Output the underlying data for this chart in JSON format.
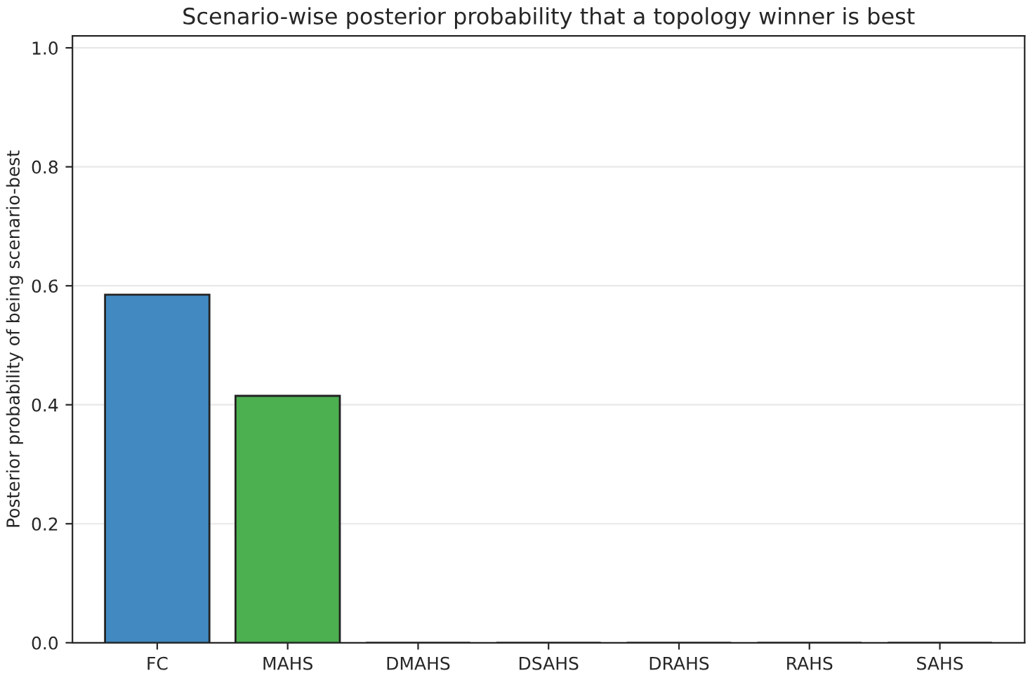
{
  "chart_data": {
    "type": "bar",
    "title": "Scenario-wise posterior probability that a topology winner is best",
    "ylabel": "Posterior probability of being scenario-best",
    "categories": [
      "FC",
      "MAHS",
      "DMAHS",
      "DSAHS",
      "DRAHS",
      "RAHS",
      "SAHS"
    ],
    "values": [
      0.585,
      0.415,
      0,
      0,
      0,
      0,
      0
    ],
    "colors": [
      "#4189c0",
      "#4caf50",
      "#222222",
      "#222222",
      "#222222",
      "#222222",
      "#222222"
    ],
    "ylim": [
      0,
      1.02
    ],
    "yticks": [
      {
        "value": 0,
        "label": "0.0"
      },
      {
        "value": 0.2,
        "label": "0.2"
      },
      {
        "value": 0.4,
        "label": "0.4"
      },
      {
        "value": 0.6,
        "label": "0.6"
      },
      {
        "value": 0.8,
        "label": "0.8"
      },
      {
        "value": 1,
        "label": "1.0"
      }
    ],
    "grid": "y"
  }
}
